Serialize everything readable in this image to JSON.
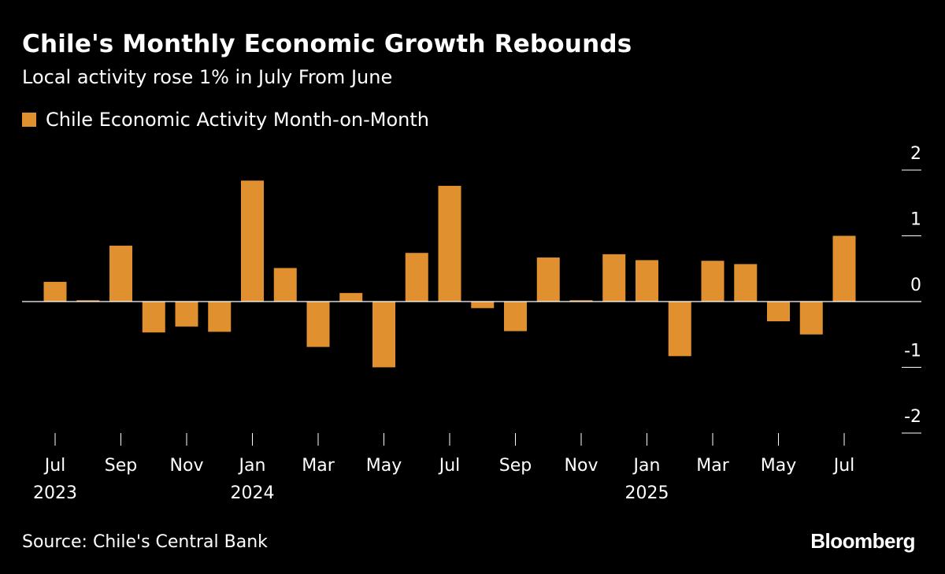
{
  "header": {
    "title": "Chile's Monthly Economic Growth Rebounds",
    "subtitle": "Local activity rose 1% in July From June"
  },
  "legend": {
    "label": "Chile Economic Activity Month-on-Month"
  },
  "colors": {
    "background": "#000000",
    "bar": "#e1902f",
    "text": "#ffffff",
    "axis": "#ffffff"
  },
  "footer": {
    "source": "Source: Chile's Central Bank",
    "brand": "Bloomberg"
  },
  "chart_data": {
    "type": "bar",
    "title": "Chile's Monthly Economic Growth Rebounds",
    "subtitle": "Local activity rose 1% in July From June",
    "xlabel": "",
    "ylabel": "",
    "ylim": [
      -2,
      2
    ],
    "yticks": [
      "2",
      "1",
      "0",
      "-1",
      "-2"
    ],
    "grid": false,
    "legend_position": "top-left",
    "categories": [
      "Jul 2023",
      "Aug 2023",
      "Sep 2023",
      "Oct 2023",
      "Nov 2023",
      "Dec 2023",
      "Jan 2024",
      "Feb 2024",
      "Mar 2024",
      "Apr 2024",
      "May 2024",
      "Jun 2024",
      "Jul 2024",
      "Aug 2024",
      "Sep 2024",
      "Oct 2024",
      "Nov 2024",
      "Dec 2024",
      "Jan 2025",
      "Feb 2025",
      "Mar 2025",
      "Apr 2025",
      "May 2025",
      "Jun 2025",
      "Jul 2025"
    ],
    "x_tick_labels": [
      {
        "index": 0,
        "month": "Jul",
        "year": "2023"
      },
      {
        "index": 2,
        "month": "Sep",
        "year": ""
      },
      {
        "index": 4,
        "month": "Nov",
        "year": ""
      },
      {
        "index": 6,
        "month": "Jan",
        "year": "2024"
      },
      {
        "index": 8,
        "month": "Mar",
        "year": ""
      },
      {
        "index": 10,
        "month": "May",
        "year": ""
      },
      {
        "index": 12,
        "month": "Jul",
        "year": ""
      },
      {
        "index": 14,
        "month": "Sep",
        "year": ""
      },
      {
        "index": 16,
        "month": "Nov",
        "year": ""
      },
      {
        "index": 18,
        "month": "Jan",
        "year": "2025"
      },
      {
        "index": 20,
        "month": "Mar",
        "year": ""
      },
      {
        "index": 22,
        "month": "May",
        "year": ""
      },
      {
        "index": 24,
        "month": "Jul",
        "year": ""
      }
    ],
    "series": [
      {
        "name": "Chile Economic Activity Month-on-Month",
        "values": [
          0.3,
          0.02,
          0.85,
          -0.47,
          -0.38,
          -0.46,
          1.84,
          0.51,
          -0.69,
          0.13,
          -1.0,
          0.74,
          1.76,
          -0.1,
          -0.45,
          0.67,
          0.02,
          0.72,
          0.63,
          -0.83,
          0.62,
          0.57,
          -0.3,
          -0.5,
          1.0
        ]
      }
    ]
  }
}
